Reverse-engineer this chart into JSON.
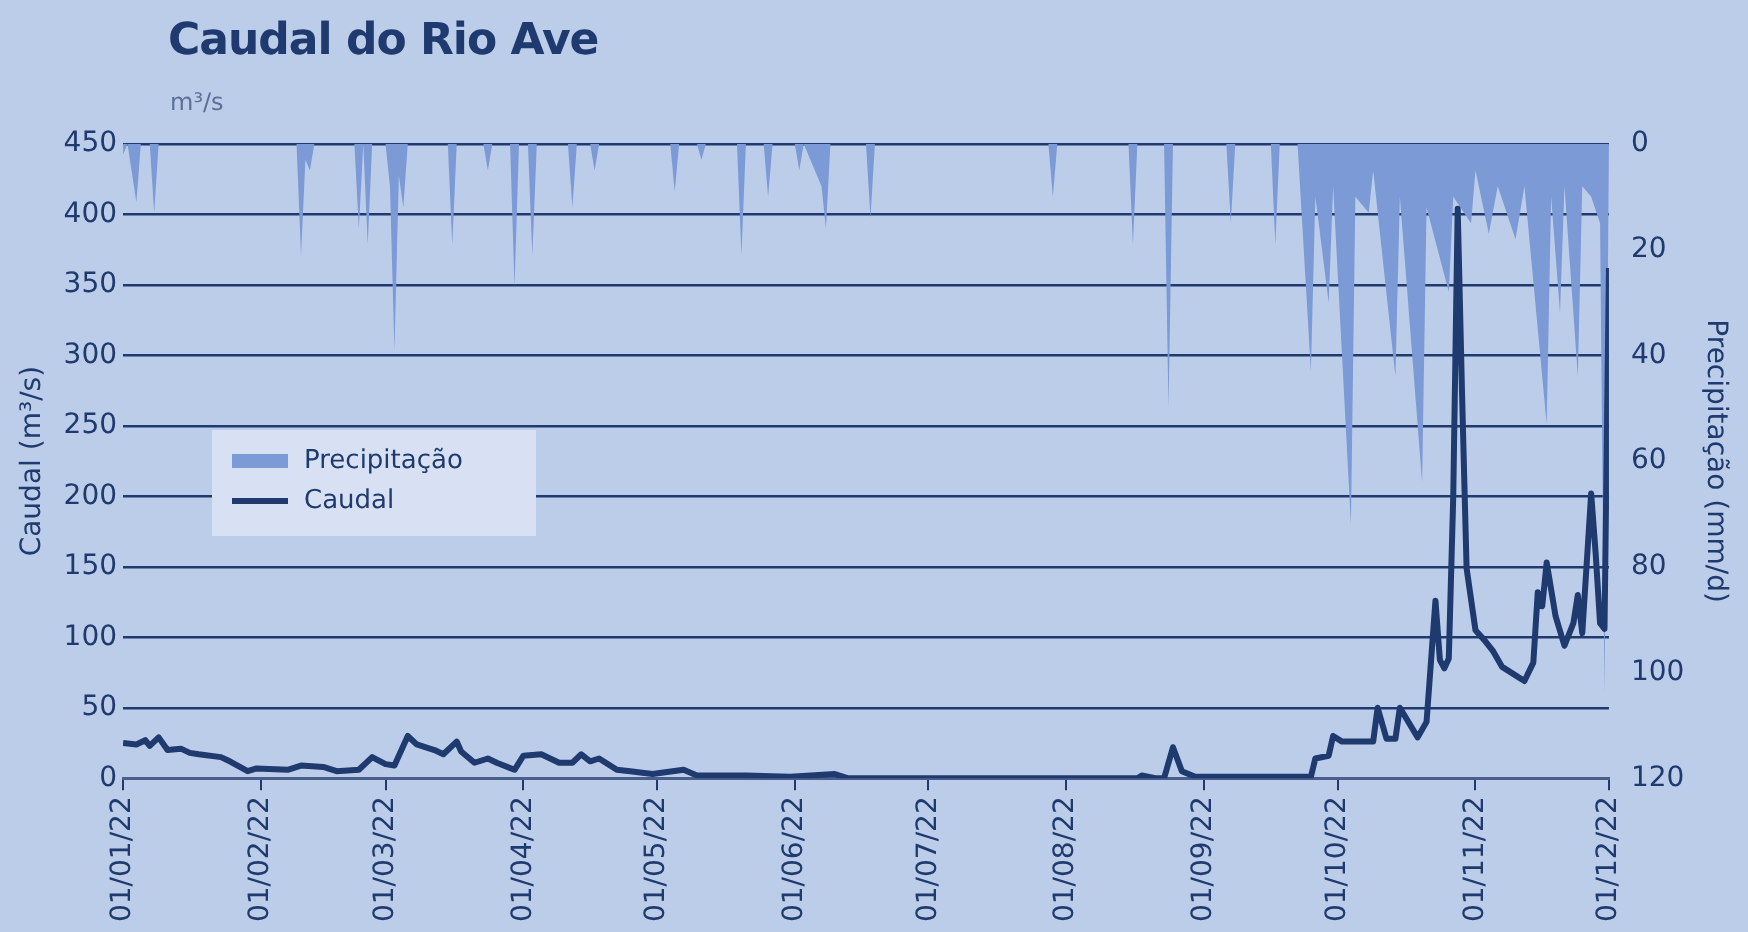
{
  "chart_data": {
    "type": "line",
    "title": "Caudal do Rio Ave",
    "subtitle": "m³/s",
    "ylabel": "Caudal (m³/s)",
    "y2label": "Precipitação (mm/d)",
    "xlim": [
      "2022-01-01",
      "2022-12-01"
    ],
    "xticks": [
      {
        "value": "2022-01-01",
        "label": "01/01/22"
      },
      {
        "value": "2022-02-01",
        "label": "01/02/22"
      },
      {
        "value": "2022-03-01",
        "label": "01/03/22"
      },
      {
        "value": "2022-04-01",
        "label": "01/04/22"
      },
      {
        "value": "2022-05-01",
        "label": "01/05/22"
      },
      {
        "value": "2022-06-01",
        "label": "01/06/22"
      },
      {
        "value": "2022-07-01",
        "label": "01/07/22"
      },
      {
        "value": "2022-08-01",
        "label": "01/08/22"
      },
      {
        "value": "2022-09-01",
        "label": "01/09/22"
      },
      {
        "value": "2022-10-01",
        "label": "01/10/22"
      },
      {
        "value": "2022-11-01",
        "label": "01/11/22"
      },
      {
        "value": "2022-12-01",
        "label": "01/12/22"
      }
    ],
    "ylim": [
      0,
      450
    ],
    "yticks": [
      0,
      50,
      100,
      150,
      200,
      250,
      300,
      350,
      400,
      450
    ],
    "y2lim": [
      120,
      0
    ],
    "y2ticks": [
      0,
      20,
      40,
      60,
      80,
      100,
      120
    ],
    "grid": "y",
    "legend": "left",
    "marker": "none",
    "line_style": "solid",
    "series": [
      {
        "name": "Precipitação",
        "type": "area",
        "axis": "y2",
        "color": "#7b9ad6",
        "x": [
          "2022-01-01",
          "2022-01-02",
          "2022-01-04",
          "2022-01-05",
          "2022-01-07",
          "2022-01-08",
          "2022-01-09",
          "2022-02-09",
          "2022-02-10",
          "2022-02-11",
          "2022-02-12",
          "2022-02-13",
          "2022-02-22",
          "2022-02-23",
          "2022-02-24",
          "2022-02-25",
          "2022-02-26",
          "2022-03-01",
          "2022-03-02",
          "2022-03-03",
          "2022-03-04",
          "2022-03-05",
          "2022-03-06",
          "2022-03-15",
          "2022-03-16",
          "2022-03-17",
          "2022-03-23",
          "2022-03-24",
          "2022-03-25",
          "2022-03-29",
          "2022-03-30",
          "2022-03-31",
          "2022-04-02",
          "2022-04-03",
          "2022-04-04",
          "2022-04-11",
          "2022-04-12",
          "2022-04-13",
          "2022-04-16",
          "2022-04-17",
          "2022-04-18",
          "2022-05-04",
          "2022-05-05",
          "2022-05-06",
          "2022-05-10",
          "2022-05-11",
          "2022-05-12",
          "2022-05-19",
          "2022-05-20",
          "2022-05-21",
          "2022-05-25",
          "2022-05-26",
          "2022-05-27",
          "2022-06-01",
          "2022-06-02",
          "2022-06-03",
          "2022-06-07",
          "2022-06-08",
          "2022-06-09",
          "2022-06-17",
          "2022-06-18",
          "2022-06-19",
          "2022-07-28",
          "2022-07-29",
          "2022-07-30",
          "2022-08-15",
          "2022-08-16",
          "2022-08-17",
          "2022-08-23",
          "2022-08-24",
          "2022-08-25",
          "2022-09-06",
          "2022-09-07",
          "2022-09-08",
          "2022-09-16",
          "2022-09-17",
          "2022-09-18",
          "2022-09-22",
          "2022-09-25",
          "2022-09-26",
          "2022-09-29",
          "2022-09-30",
          "2022-10-04",
          "2022-10-05",
          "2022-10-08",
          "2022-10-09",
          "2022-10-14",
          "2022-10-15",
          "2022-10-20",
          "2022-10-21",
          "2022-10-26",
          "2022-10-27",
          "2022-10-31",
          "2022-11-01",
          "2022-11-04",
          "2022-11-06",
          "2022-11-10",
          "2022-11-12",
          "2022-11-17",
          "2022-11-18",
          "2022-11-20",
          "2022-11-21",
          "2022-11-24",
          "2022-11-25",
          "2022-11-27",
          "2022-11-29",
          "2022-11-30",
          "2022-12-01"
        ],
        "values": [
          2,
          0,
          11,
          0,
          0,
          13,
          0,
          0,
          21,
          3,
          5,
          0,
          0,
          16,
          0,
          19,
          0,
          0,
          8,
          39,
          6,
          12,
          0,
          0,
          19,
          0,
          0,
          5,
          0,
          0,
          27,
          0,
          0,
          21,
          0,
          0,
          12,
          0,
          0,
          5,
          0,
          0,
          9,
          0,
          0,
          3,
          0,
          0,
          21,
          0,
          0,
          10,
          0,
          0,
          5,
          0,
          8,
          16,
          0,
          0,
          14,
          0,
          0,
          10,
          0,
          0,
          19,
          0,
          0,
          50,
          0,
          0,
          15,
          0,
          0,
          19,
          0,
          0,
          43,
          10,
          30,
          8,
          72,
          10,
          13,
          5,
          44,
          10,
          64,
          12,
          28,
          10,
          15,
          5,
          17,
          8,
          18,
          8,
          53,
          10,
          32,
          8,
          44,
          8,
          10,
          15,
          104,
          0
        ]
      },
      {
        "name": "Caudal",
        "type": "line",
        "color": "#1f3a6e",
        "x": [
          "2022-01-01",
          "2022-01-04",
          "2022-01-06",
          "2022-01-07",
          "2022-01-09",
          "2022-01-11",
          "2022-01-14",
          "2022-01-16",
          "2022-01-18",
          "2022-01-23",
          "2022-01-25",
          "2022-01-29",
          "2022-01-31",
          "2022-02-07",
          "2022-02-10",
          "2022-02-15",
          "2022-02-18",
          "2022-02-23",
          "2022-02-26",
          "2022-03-01",
          "2022-03-03",
          "2022-03-06",
          "2022-03-08",
          "2022-03-12",
          "2022-03-14",
          "2022-03-17",
          "2022-03-18",
          "2022-03-21",
          "2022-03-24",
          "2022-03-26",
          "2022-03-30",
          "2022-04-01",
          "2022-04-05",
          "2022-04-09",
          "2022-04-12",
          "2022-04-14",
          "2022-04-16",
          "2022-04-18",
          "2022-04-22",
          "2022-04-25",
          "2022-04-30",
          "2022-05-07",
          "2022-05-10",
          "2022-05-15",
          "2022-05-21",
          "2022-05-31",
          "2022-06-10",
          "2022-06-13",
          "2022-08-17",
          "2022-08-18",
          "2022-08-21",
          "2022-08-23",
          "2022-08-25",
          "2022-08-27",
          "2022-08-30",
          "2022-09-09",
          "2022-09-25",
          "2022-09-26",
          "2022-09-29",
          "2022-09-30",
          "2022-10-02",
          "2022-10-09",
          "2022-10-10",
          "2022-10-12",
          "2022-10-14",
          "2022-10-15",
          "2022-10-19",
          "2022-10-21",
          "2022-10-23",
          "2022-10-24",
          "2022-10-25",
          "2022-10-26",
          "2022-10-27",
          "2022-10-28",
          "2022-10-29",
          "2022-10-30",
          "2022-11-01",
          "2022-11-03",
          "2022-11-05",
          "2022-11-07",
          "2022-11-10",
          "2022-11-12",
          "2022-11-14",
          "2022-11-15",
          "2022-11-16",
          "2022-11-17",
          "2022-11-19",
          "2022-11-21",
          "2022-11-23",
          "2022-11-24",
          "2022-11-25",
          "2022-11-27",
          "2022-11-28",
          "2022-11-29",
          "2022-11-30",
          "2022-12-01"
        ],
        "values": [
          25,
          24,
          27,
          23,
          29,
          20,
          21,
          18,
          17,
          15,
          12,
          5,
          7,
          6,
          9,
          8,
          5,
          6,
          15,
          10,
          9,
          30,
          24,
          20,
          17,
          26,
          19,
          11,
          14,
          11,
          6,
          16,
          17,
          11,
          11,
          17,
          12,
          14,
          6,
          5,
          3,
          6,
          2,
          2,
          2,
          1,
          3,
          0,
          0,
          2,
          0,
          0,
          22,
          5,
          1,
          1,
          1,
          14,
          16,
          30,
          26,
          26,
          50,
          28,
          28,
          50,
          29,
          40,
          126,
          84,
          78,
          85,
          200,
          404,
          270,
          149,
          105,
          98,
          90,
          79,
          73,
          69,
          82,
          132,
          122,
          153,
          115,
          94,
          110,
          130,
          103,
          202,
          160,
          110,
          106,
          362
        ]
      }
    ]
  }
}
